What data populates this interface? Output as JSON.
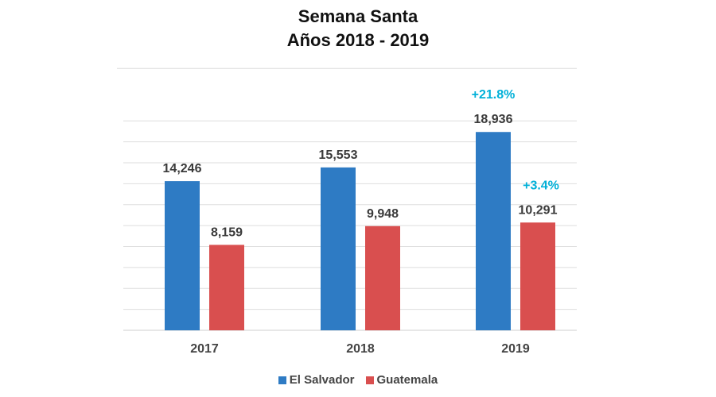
{
  "chart_data": {
    "type": "bar",
    "title": "Semana Santa",
    "subtitle": "Años 2018 - 2019",
    "xlabel": "",
    "ylabel": "",
    "categories": [
      "2017",
      "2018",
      "2019"
    ],
    "series": [
      {
        "name": "El Salvador",
        "color": "#2e7bc4",
        "values": [
          14246,
          15553,
          18936
        ],
        "labels": [
          "14,246",
          "15,553",
          "18,936"
        ]
      },
      {
        "name": "Guatemala",
        "color": "#d94f4f",
        "values": [
          8159,
          9948,
          10291
        ],
        "labels": [
          "8,159",
          "9,948",
          "10,291"
        ]
      }
    ],
    "annotations": [
      {
        "series": "El Salvador",
        "category": "2019",
        "text": "+21.8%",
        "color": "#00b0d8"
      },
      {
        "series": "Guatemala",
        "category": "2019",
        "text": "+3.4%",
        "color": "#00b0d8"
      }
    ],
    "ylim": [
      0,
      25000
    ],
    "grid_step": 2000,
    "grid": true,
    "y_ticks_shown": false,
    "legend_position": "bottom"
  }
}
